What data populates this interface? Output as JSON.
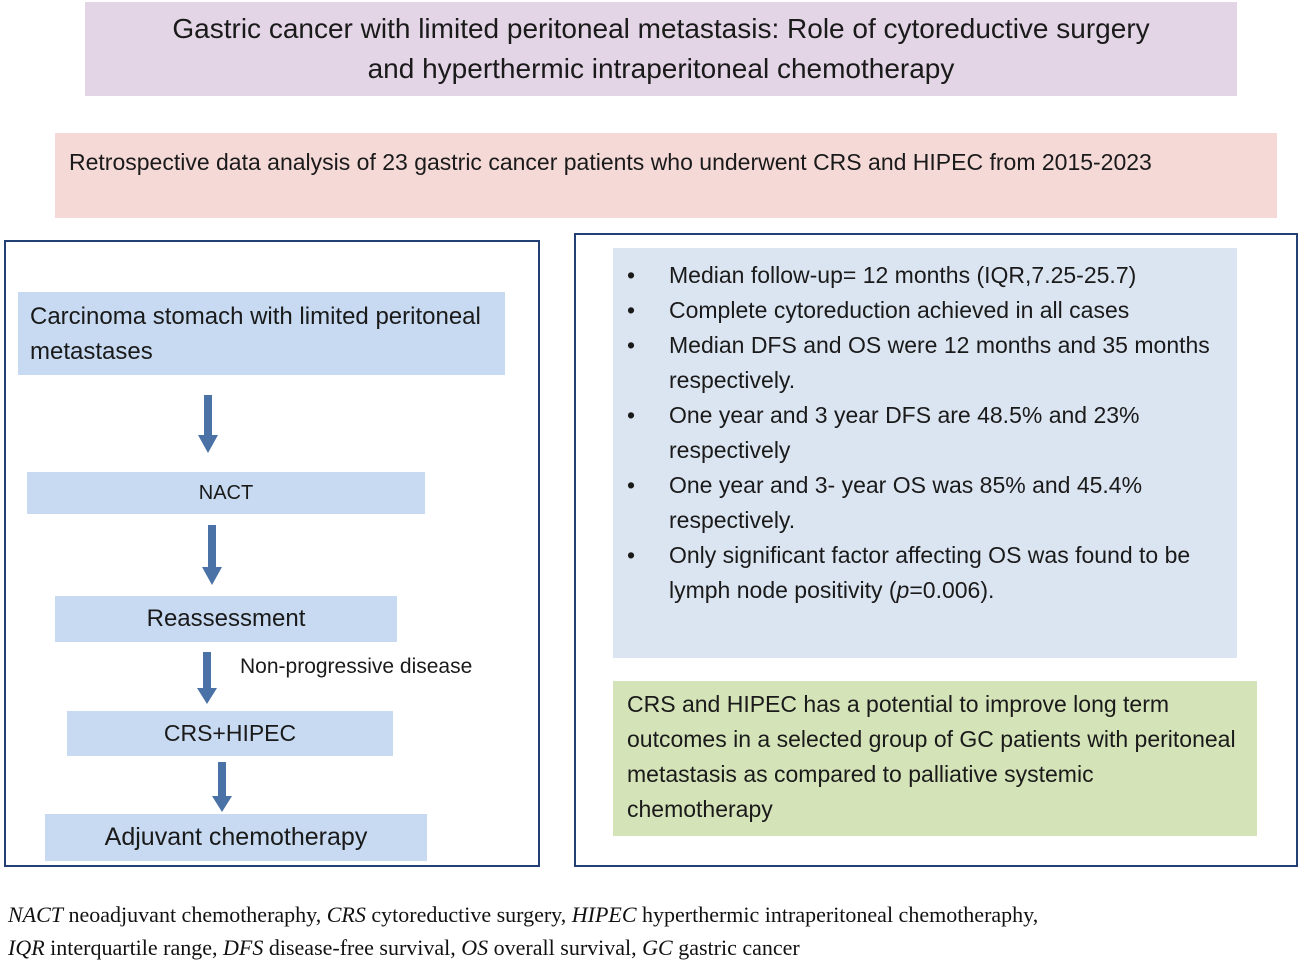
{
  "title": {
    "line1": "Gastric cancer with limited peritoneal metastasis: Role of cytoreductive surgery",
    "line2": "and hyperthermic intraperitoneal chemotherapy"
  },
  "study": "Retrospective data analysis of 23 gastric cancer patients who underwent  CRS and HIPEC from 2015-2023",
  "flowchart": {
    "steps": [
      "Carcinoma stomach with limited peritoneal metastases",
      "NACT",
      "Reassessment",
      "CRS+HIPEC",
      "Adjuvant chemotherapy"
    ],
    "arrow_label": "Non-progressive disease"
  },
  "results": {
    "bullet": "•",
    "items": [
      "Median follow-up= 12 months (IQR,7.25-25.7)",
      "Complete cytoreduction achieved in all cases",
      "Median DFS and OS were 12 months and 35 months respectively.",
      "One year and 3  year DFS are 48.5% and 23% respectively",
      "One year and 3- year OS was 85% and 45.4% respectively.",
      "Only significant factor affecting OS was found to be lymph node positivity ("
    ],
    "last_item_p": "p",
    "last_item_tail": "=0.006)."
  },
  "conclusion": "CRS and HIPEC has a potential to improve long term outcomes in a selected group of GC patients with peritoneal metastasis as compared to palliative systemic chemotherapy",
  "caption": {
    "abbrevs": [
      {
        "abbr": "NACT",
        "def": " neoadjuvant chemotheraphy, "
      },
      {
        "abbr": "CRS",
        "def": " cytoreductive surgery, "
      },
      {
        "abbr": "HIPEC",
        "def": " hyperthermic intraperitoneal chemotheraphy,"
      },
      {
        "abbr": "IQR",
        "def": " interquartile range, "
      },
      {
        "abbr": "DFS",
        "def": " disease-free survival, "
      },
      {
        "abbr": "OS",
        "def": " overall survival, "
      },
      {
        "abbr": "GC",
        "def": " gastric cancer"
      }
    ]
  },
  "colors": {
    "title_bg": "#e3d5e6",
    "study_bg": "#f4d9d7",
    "flow_box": "#c7daf1",
    "results_bg": "#dbe5f1",
    "conclusion_bg": "#d5e3b8",
    "panel_border": "#243f73",
    "arrow": "#4a72a6"
  }
}
